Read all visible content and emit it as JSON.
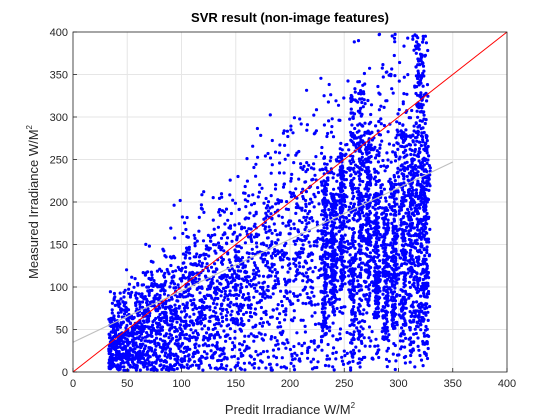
{
  "chart_data": {
    "type": "scatter",
    "title": "SVR result (non-image features)",
    "xlabel": "Predit Irradiance W/M",
    "ylabel": "Measured Irradiance W/M",
    "label_superscript": "2",
    "xlim": [
      0,
      400
    ],
    "ylim": [
      0,
      400
    ],
    "xticks": [
      0,
      50,
      100,
      150,
      200,
      250,
      300,
      350,
      400
    ],
    "yticks": [
      0,
      50,
      100,
      150,
      200,
      250,
      300,
      350,
      400
    ],
    "grid": true,
    "marker_color": "#0000ff",
    "point_cloud": {
      "x_range": [
        33,
        328
      ],
      "y_range": [
        0,
        400
      ],
      "description_source": "dense cloud of measured vs predicted points"
    },
    "lines": [
      {
        "kind": "identity",
        "color": "#ff0000",
        "x": [
          0,
          400
        ],
        "y": [
          0,
          400
        ]
      },
      {
        "kind": "fit",
        "color": "#bfbfbf",
        "x": [
          0,
          350
        ],
        "y": [
          35,
          247
        ]
      }
    ]
  }
}
